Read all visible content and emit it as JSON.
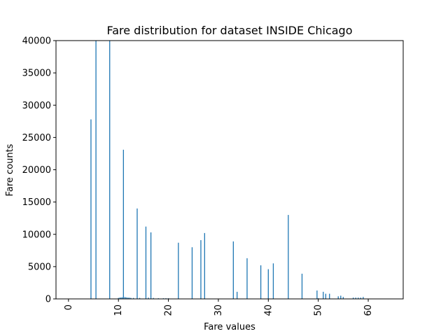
{
  "chart_data": {
    "type": "bar",
    "title": "Fare distribution for dataset INSIDE Chicago",
    "xlabel": "Fare values",
    "ylabel": "Fare counts",
    "xlim": [
      -2.5,
      67
    ],
    "ylim": [
      0,
      40000
    ],
    "x_ticks": [
      0,
      10,
      20,
      30,
      40,
      50,
      60
    ],
    "x_tick_rotation": 90,
    "y_ticks": [
      0,
      5000,
      10000,
      15000,
      20000,
      25000,
      30000,
      35000,
      40000
    ],
    "grid": false,
    "bar_color": "#1f77b4",
    "series": [
      {
        "x": [
          4.5,
          5.5,
          8.25,
          10.0,
          10.25,
          10.5,
          10.75,
          11.0,
          11.25,
          11.5,
          11.75,
          12.0,
          12.25,
          12.5,
          13.0,
          13.75,
          14.25,
          15.5,
          16.0,
          16.5,
          17.0,
          18.0,
          19.0,
          19.5,
          20.0,
          22.0,
          24.75,
          26.5,
          27.25,
          33.0,
          33.75,
          35.75,
          38.5,
          40.0,
          41.0,
          44.0,
          46.75,
          49.75,
          50.0,
          51.0,
          51.5,
          52.25,
          54.0,
          54.5,
          55.0,
          57.0,
          57.5,
          58.0,
          58.5,
          59.0
        ],
        "values": [
          27800,
          40000,
          40000,
          150,
          200,
          220,
          250,
          23100,
          280,
          250,
          200,
          180,
          180,
          150,
          150,
          14000,
          150,
          11200,
          200,
          10300,
          150,
          100,
          100,
          100,
          100,
          8700,
          8000,
          9100,
          10200,
          8900,
          1100,
          6300,
          5200,
          4600,
          5500,
          13000,
          3900,
          1300,
          100,
          1100,
          800,
          800,
          400,
          500,
          300,
          200,
          200,
          200,
          200,
          300
        ]
      }
    ]
  }
}
